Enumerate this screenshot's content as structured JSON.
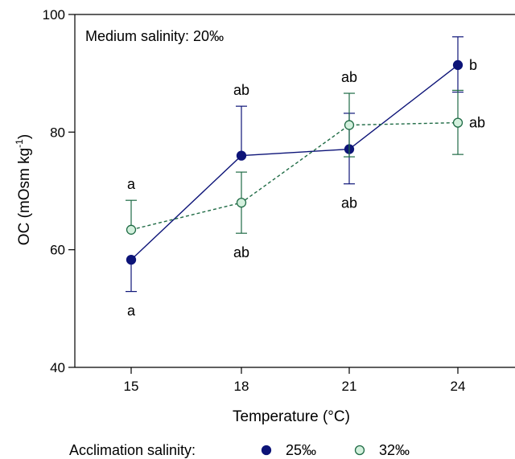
{
  "chart_data": {
    "type": "line",
    "annotation": "Medium salinity: 20‰",
    "xlabel": "Temperature (°C)",
    "ylabel_main": "OC (mOsm kg",
    "ylabel_sup": "-1",
    "ylabel_close": ")",
    "x": [
      15,
      18,
      21,
      24
    ],
    "xticks": [
      "15",
      "18",
      "21",
      "24"
    ],
    "ylim": [
      40,
      100
    ],
    "yticks": [
      40,
      60,
      80,
      100
    ],
    "series": [
      {
        "name": "25‰",
        "values": [
          58.3,
          76.0,
          77.1,
          91.4
        ],
        "err_low": [
          52.9,
          76.0,
          71.2,
          86.8
        ],
        "err_high": [
          58.3,
          84.4,
          83.2,
          96.2
        ],
        "letters": [
          "a",
          "ab",
          "ab",
          "b"
        ],
        "letter_pos": [
          "below",
          "above",
          "below",
          "right"
        ],
        "color": "#0d1478",
        "style": "solid",
        "marker": "filled"
      },
      {
        "name": "32‰",
        "values": [
          63.4,
          68.0,
          81.2,
          81.6
        ],
        "err_low": [
          63.4,
          62.8,
          75.8,
          76.2
        ],
        "err_high": [
          68.4,
          73.2,
          86.6,
          87.1
        ],
        "letters": [
          "a",
          "ab",
          "ab",
          "ab"
        ],
        "letter_pos": [
          "above",
          "below",
          "above",
          "right"
        ],
        "color": "#1f6b45",
        "fill": "#d3f0dd",
        "style": "dashed",
        "marker": "open"
      }
    ],
    "legend": {
      "title": "Acclimation salinity:",
      "position": "bottom"
    }
  }
}
